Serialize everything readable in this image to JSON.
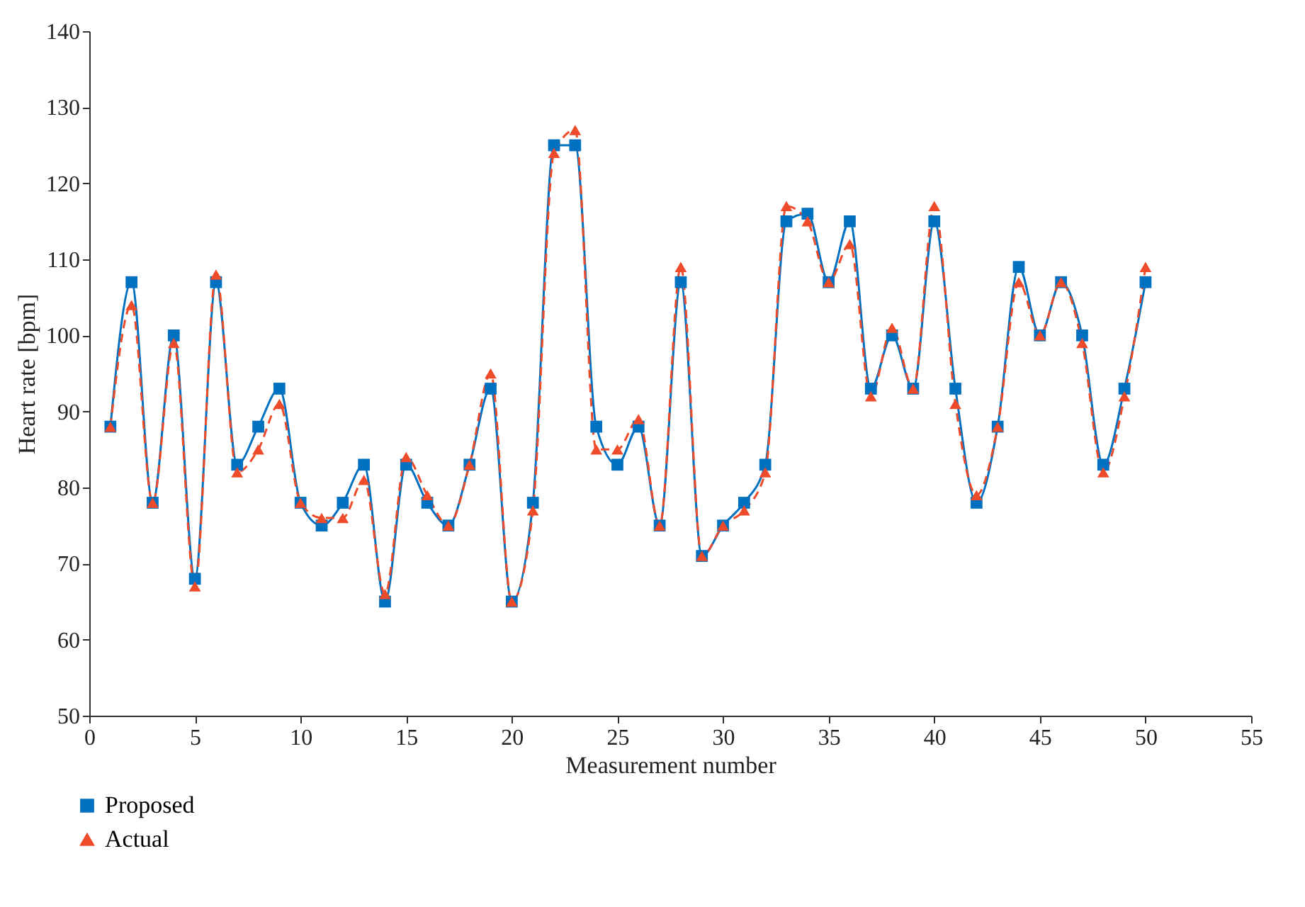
{
  "chart_data": {
    "type": "line",
    "xlabel": "Measurement number",
    "ylabel": "Heart rate [bpm]",
    "x": [
      1,
      2,
      3,
      4,
      5,
      6,
      7,
      8,
      9,
      10,
      11,
      12,
      13,
      14,
      15,
      16,
      17,
      18,
      19,
      20,
      21,
      22,
      23,
      24,
      25,
      26,
      27,
      28,
      29,
      30,
      31,
      32,
      33,
      34,
      35,
      36,
      37,
      38,
      39,
      40,
      41,
      42,
      43,
      44,
      45,
      46,
      47,
      48,
      49,
      50
    ],
    "series": [
      {
        "name": "Proposed",
        "color": "#0070c0",
        "marker": "square",
        "line_style": "solid",
        "values": [
          88,
          107,
          78,
          100,
          68,
          107,
          83,
          88,
          93,
          78,
          75,
          78,
          83,
          65,
          83,
          78,
          75,
          83,
          93,
          65,
          78,
          125,
          125,
          88,
          83,
          88,
          75,
          107,
          71,
          75,
          78,
          83,
          115,
          116,
          107,
          115,
          93,
          100,
          93,
          115,
          93,
          78,
          88,
          109,
          100,
          107,
          100,
          83,
          93,
          107
        ]
      },
      {
        "name": "Actual",
        "color": "#ee4b2b",
        "marker": "triangle",
        "line_style": "dashed",
        "values": [
          88,
          104,
          78,
          99,
          67,
          108,
          82,
          85,
          91,
          78,
          76,
          76,
          81,
          66,
          84,
          79,
          75,
          83,
          95,
          65,
          77,
          124,
          127,
          85,
          85,
          89,
          75,
          109,
          71,
          75,
          77,
          82,
          117,
          115,
          107,
          112,
          92,
          101,
          93,
          117,
          91,
          79,
          88,
          107,
          100,
          107,
          99,
          82,
          92,
          109
        ]
      }
    ],
    "xlim": [
      0,
      55
    ],
    "xticks": [
      0,
      5,
      10,
      15,
      20,
      25,
      30,
      35,
      40,
      45,
      50,
      55
    ],
    "ylim": [
      50,
      140
    ],
    "yticks": [
      50,
      60,
      70,
      80,
      90,
      100,
      110,
      120,
      130,
      140
    ],
    "grid": false,
    "legend": "bottom left"
  }
}
